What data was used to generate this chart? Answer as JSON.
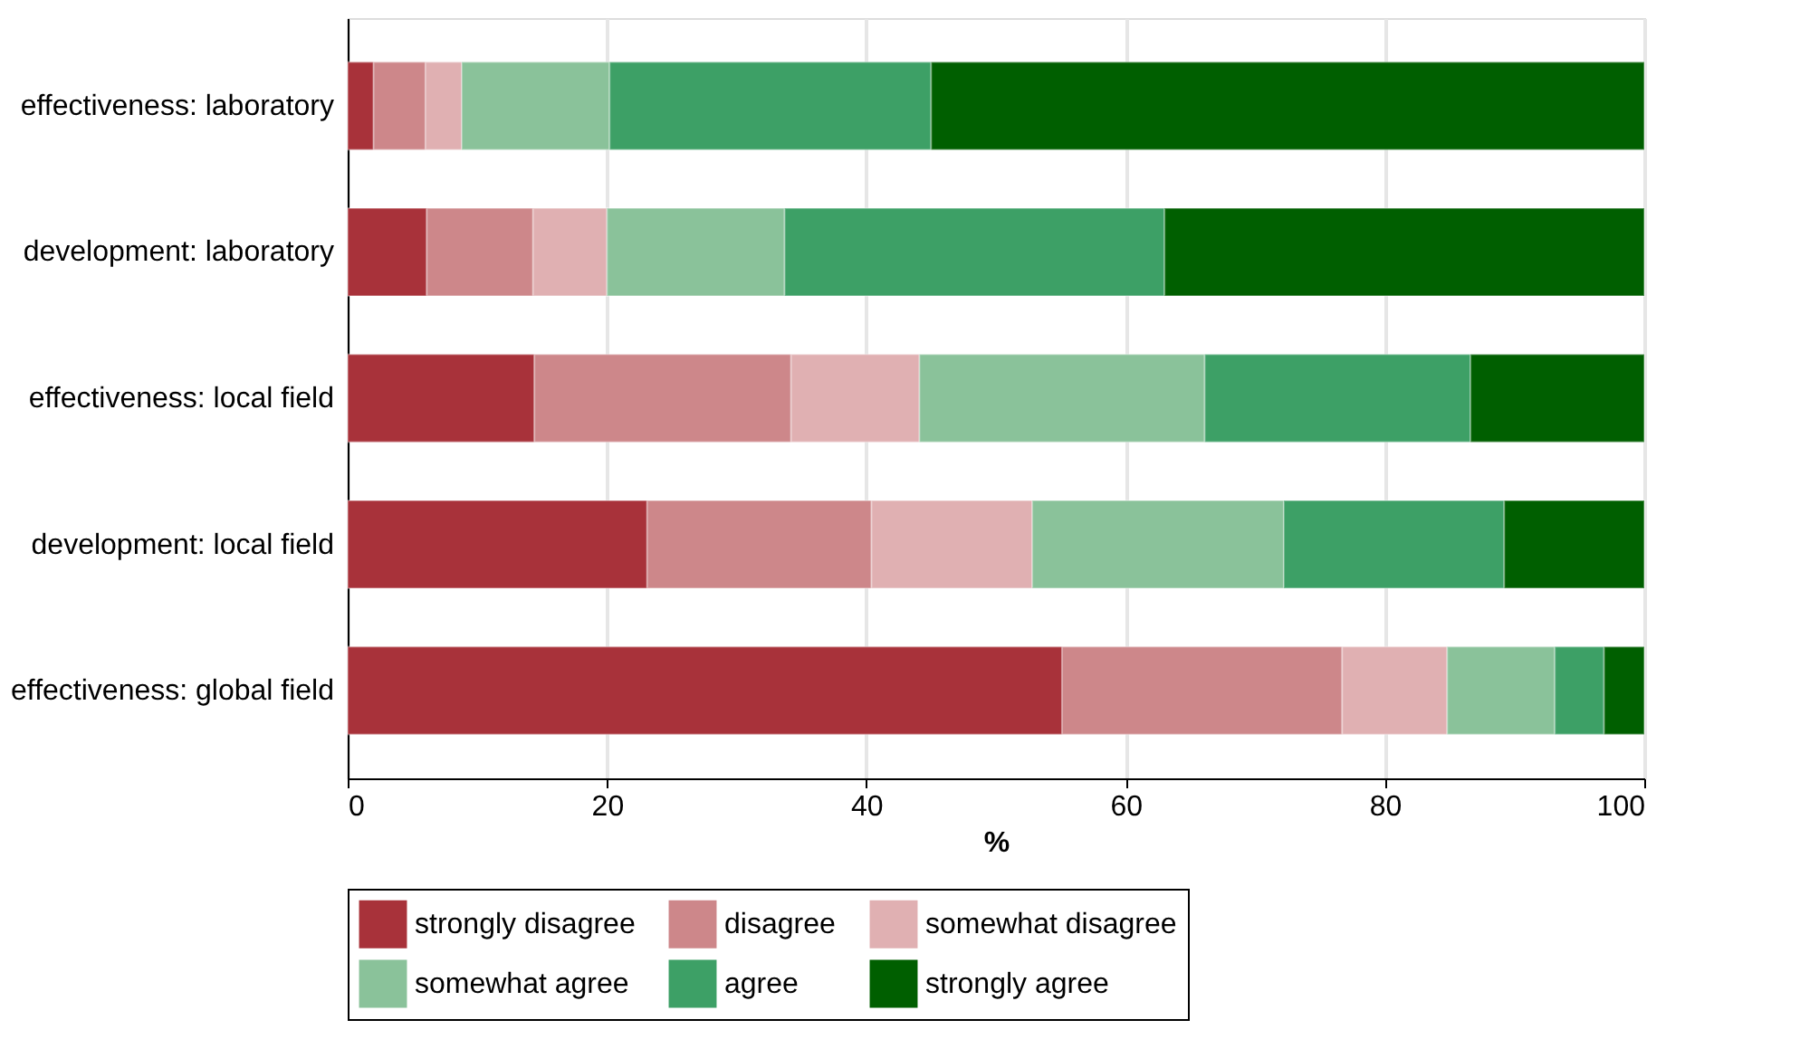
{
  "chart_data": {
    "type": "bar",
    "orientation": "horizontal",
    "stacked": true,
    "categories": [
      "effectiveness: laboratory",
      "development: laboratory",
      "effectiveness: local field",
      "development: local field",
      "effectiveness: global field"
    ],
    "series": [
      {
        "name": "strongly disagree",
        "color": "#a8323a",
        "values": [
          2.0,
          6.1,
          14.4,
          23.1,
          55.1
        ]
      },
      {
        "name": "disagree",
        "color": "#cd878a",
        "values": [
          4.0,
          8.2,
          19.8,
          17.3,
          21.6
        ]
      },
      {
        "name": "somewhat disagree",
        "color": "#e0b0b2",
        "values": [
          2.8,
          5.7,
          9.9,
          12.4,
          8.1
        ]
      },
      {
        "name": "somewhat agree",
        "color": "#8ac29a",
        "values": [
          11.4,
          13.7,
          22.0,
          19.4,
          8.3
        ]
      },
      {
        "name": "agree",
        "color": "#3da066",
        "values": [
          24.8,
          29.3,
          20.5,
          17.0,
          3.8
        ]
      },
      {
        "name": "strongly agree",
        "color": "#005f00",
        "values": [
          55.0,
          37.0,
          13.4,
          10.8,
          3.1
        ]
      }
    ],
    "xlabel": "%",
    "xlim": [
      0,
      100
    ],
    "xticks": [
      0,
      20,
      40,
      60,
      80,
      100
    ],
    "grid": "x",
    "legend": "bottom"
  }
}
